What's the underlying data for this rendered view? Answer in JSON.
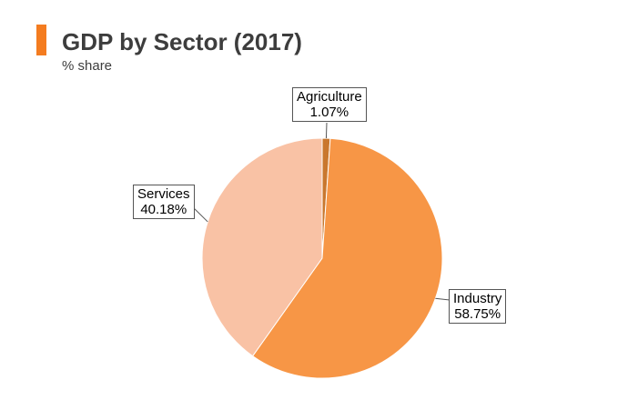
{
  "chart_data": {
    "type": "pie",
    "title": "GDP by Sector (2017)",
    "subtitle": "% share",
    "slices": [
      {
        "label": "Agriculture",
        "value": 1.07,
        "value_text": "1.07%",
        "color": "#c9772e"
      },
      {
        "label": "Industry",
        "value": 58.75,
        "value_text": "58.75%",
        "color": "#f79646"
      },
      {
        "label": "Services",
        "value": 40.18,
        "value_text": "40.18%",
        "color": "#f9c2a5"
      }
    ]
  },
  "colors": {
    "accent": "#f47c20",
    "title_text": "#3d3d3d"
  }
}
